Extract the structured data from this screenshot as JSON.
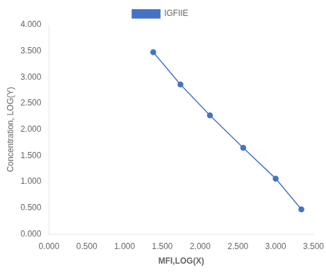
{
  "chart_data": {
    "type": "line",
    "x": [
      1.38,
      1.74,
      2.13,
      2.57,
      3.0,
      3.34
    ],
    "series": [
      {
        "name": "IGFIIE",
        "color": "#4472C4",
        "marker": "circle",
        "values": [
          3.48,
          2.86,
          2.27,
          1.65,
          1.06,
          0.47
        ]
      }
    ],
    "xlabel": "MFI,LOG(X)",
    "ylabel": "Concentration, LOG(Y)",
    "xlim": [
      0.0,
      3.5
    ],
    "ylim": [
      0.0,
      4.0
    ],
    "xticks": [
      {
        "value": 0.0,
        "label": "0.000"
      },
      {
        "value": 0.5,
        "label": "0.500"
      },
      {
        "value": 1.0,
        "label": "1.000"
      },
      {
        "value": 1.5,
        "label": "1.500"
      },
      {
        "value": 2.0,
        "label": "2.000"
      },
      {
        "value": 2.5,
        "label": "2.500"
      },
      {
        "value": 3.0,
        "label": "3.000"
      },
      {
        "value": 3.5,
        "label": "3.500"
      }
    ],
    "yticks": [
      {
        "value": 0.0,
        "label": "0.000"
      },
      {
        "value": 0.5,
        "label": "0.500"
      },
      {
        "value": 1.0,
        "label": "1.000"
      },
      {
        "value": 1.5,
        "label": "1.500"
      },
      {
        "value": 2.0,
        "label": "2.000"
      },
      {
        "value": 2.5,
        "label": "2.500"
      },
      {
        "value": 3.0,
        "label": "3.000"
      },
      {
        "value": 3.5,
        "label": "3.500"
      },
      {
        "value": 4.0,
        "label": "4.000"
      }
    ],
    "legend": "top",
    "grid": false
  }
}
